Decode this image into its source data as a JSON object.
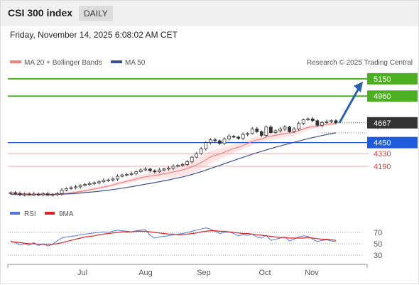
{
  "header": {
    "title": "CSI 300 index",
    "timeframe": "DAILY"
  },
  "timestamp": "Friday, November 14, 2025 6:08:02 AM CET",
  "legend": {
    "ma_label": "MA 20 + Bollinger Bands",
    "ma50_label": "MA 50",
    "rsi_label": "RSI",
    "rsi_ma_label": "9MA"
  },
  "credit": "Research © 2025 Trading Central",
  "colors": {
    "resistance": "#4caf1f",
    "support": "#1f5bdc",
    "support_minor": "#e53935",
    "price": "#333333",
    "ma20": "#f08080",
    "bands": "#fde0e0",
    "ma50": "#3a4f8f",
    "rsi": "#5577dd",
    "rsi_ma": "#dd2222",
    "arrow": "#2b5fa8"
  },
  "chart_data": {
    "type": "candlestick",
    "xlabels": [
      "Jul",
      "Aug",
      "Sep",
      "Oct",
      "Nov"
    ],
    "ylim": [
      3800,
      5250
    ],
    "levels": [
      {
        "label": "5150",
        "value": 5150,
        "kind": "resistance"
      },
      {
        "label": "4960",
        "value": 4960,
        "kind": "resistance"
      },
      {
        "label": "4667",
        "value": 4667,
        "kind": "last"
      },
      {
        "label": "4450",
        "value": 4450,
        "kind": "support"
      },
      {
        "label": "4330",
        "value": 4330,
        "kind": "support_minor"
      },
      {
        "label": "4190",
        "value": 4190,
        "kind": "support_minor"
      }
    ],
    "close": [
      3900,
      3890,
      3880,
      3885,
      3880,
      3885,
      3880,
      3888,
      3875,
      3880,
      3890,
      3930,
      3945,
      3955,
      3965,
      3980,
      3990,
      4000,
      4010,
      4020,
      4035,
      4040,
      4050,
      4080,
      4095,
      4100,
      4110,
      4130,
      4150,
      4160,
      4140,
      4130,
      4150,
      4160,
      4170,
      4190,
      4200,
      4210,
      4240,
      4290,
      4330,
      4380,
      4450,
      4480,
      4470,
      4440,
      4490,
      4520,
      4510,
      4495,
      4540,
      4550,
      4600,
      4570,
      4530,
      4620,
      4560,
      4580,
      4600,
      4620,
      4570,
      4600,
      4660,
      4700,
      4710,
      4690,
      4640,
      4670,
      4680,
      4690,
      4667
    ],
    "ma20": [
      3900,
      3895,
      3890,
      3888,
      3886,
      3885,
      3884,
      3885,
      3883,
      3882,
      3884,
      3888,
      3892,
      3898,
      3905,
      3913,
      3922,
      3932,
      3942,
      3952,
      3962,
      3972,
      3985,
      4000,
      4012,
      4025,
      4038,
      4050,
      4065,
      4075,
      4082,
      4090,
      4098,
      4108,
      4118,
      4128,
      4140,
      4150,
      4165,
      4185,
      4205,
      4230,
      4260,
      4290,
      4310,
      4325,
      4345,
      4365,
      4385,
      4400,
      4420,
      4440,
      4465,
      4480,
      4490,
      4510,
      4520,
      4530,
      4540,
      4550,
      4555,
      4565,
      4580,
      4600,
      4615,
      4625,
      4630,
      4640,
      4650,
      4655,
      4660
    ],
    "ma50": [
      3880,
      3880,
      3879,
      3879,
      3879,
      3880,
      3880,
      3881,
      3881,
      3882,
      3883,
      3885,
      3887,
      3890,
      3893,
      3897,
      3901,
      3906,
      3911,
      3916,
      3922,
      3928,
      3935,
      3942,
      3950,
      3958,
      3966,
      3975,
      3984,
      3993,
      4002,
      4011,
      4021,
      4031,
      4041,
      4052,
      4063,
      4074,
      4086,
      4100,
      4115,
      4131,
      4148,
      4166,
      4183,
      4200,
      4218,
      4236,
      4254,
      4271,
      4288,
      4305,
      4323,
      4339,
      4354,
      4370,
      4385,
      4399,
      4413,
      4427,
      4440,
      4453,
      4466,
      4480,
      4493,
      4505,
      4516,
      4527,
      4538,
      4548,
      4557
    ],
    "rsi": [
      55,
      52,
      48,
      50,
      48,
      52,
      47,
      50,
      46,
      49,
      55,
      60,
      62,
      63,
      64,
      66,
      67,
      68,
      69,
      70,
      71,
      70,
      72,
      74,
      73,
      72,
      71,
      73,
      74,
      75,
      65,
      60,
      62,
      63,
      64,
      66,
      67,
      68,
      70,
      72,
      74,
      76,
      78,
      76,
      72,
      68,
      70,
      71,
      68,
      64,
      66,
      65,
      67,
      62,
      60,
      65,
      56,
      58,
      60,
      62,
      55,
      58,
      62,
      64,
      63,
      58,
      54,
      56,
      57,
      55,
      54
    ],
    "rsi_ma": [
      54,
      53,
      52,
      51,
      50,
      50,
      49,
      49,
      49,
      49,
      50,
      52,
      54,
      56,
      58,
      60,
      62,
      63,
      64,
      66,
      67,
      68,
      69,
      70,
      71,
      71,
      71,
      72,
      72,
      72,
      71,
      70,
      69,
      68,
      67,
      67,
      66,
      66,
      67,
      68,
      69,
      71,
      72,
      73,
      73,
      72,
      72,
      71,
      70,
      69,
      68,
      68,
      67,
      66,
      65,
      64,
      63,
      62,
      61,
      61,
      60,
      60,
      60,
      60,
      61,
      60,
      59,
      58,
      58,
      57,
      56
    ],
    "rsi_ticks": [
      "70",
      "50",
      "30"
    ],
    "arrow_to": 5150
  }
}
